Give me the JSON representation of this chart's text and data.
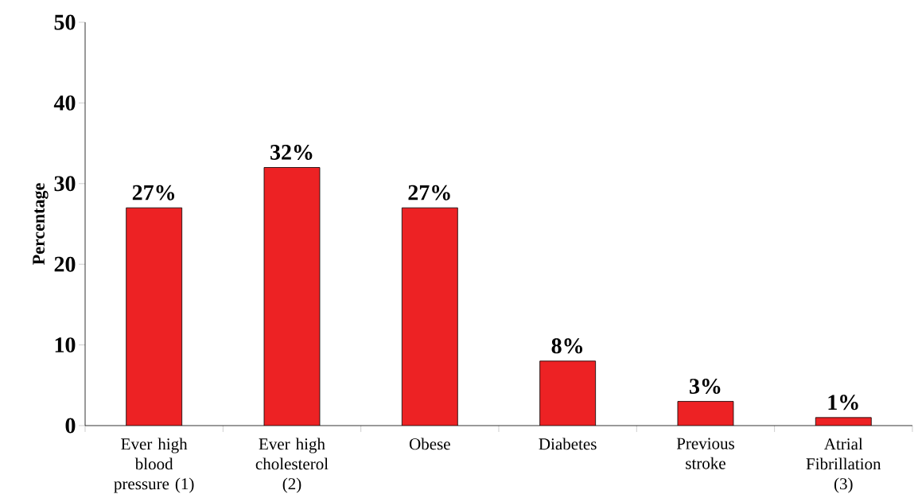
{
  "chart_data": {
    "type": "bar",
    "ylabel": "Percentage",
    "categories": [
      "Ever high blood pressure (1)",
      "Ever high cholesterol (2)",
      "Obese",
      "Diabetes",
      "Previous stroke",
      "Atrial Fibrillation (3)"
    ],
    "values": [
      27,
      32,
      27,
      8,
      3,
      1
    ],
    "value_labels": [
      "27%",
      "32%",
      "27%",
      "8%",
      "3%",
      "1%"
    ],
    "color": "#ed2224",
    "ylim": [
      0,
      50
    ],
    "yticks": [
      0,
      10,
      20,
      30,
      40,
      50
    ],
    "grid": false
  }
}
